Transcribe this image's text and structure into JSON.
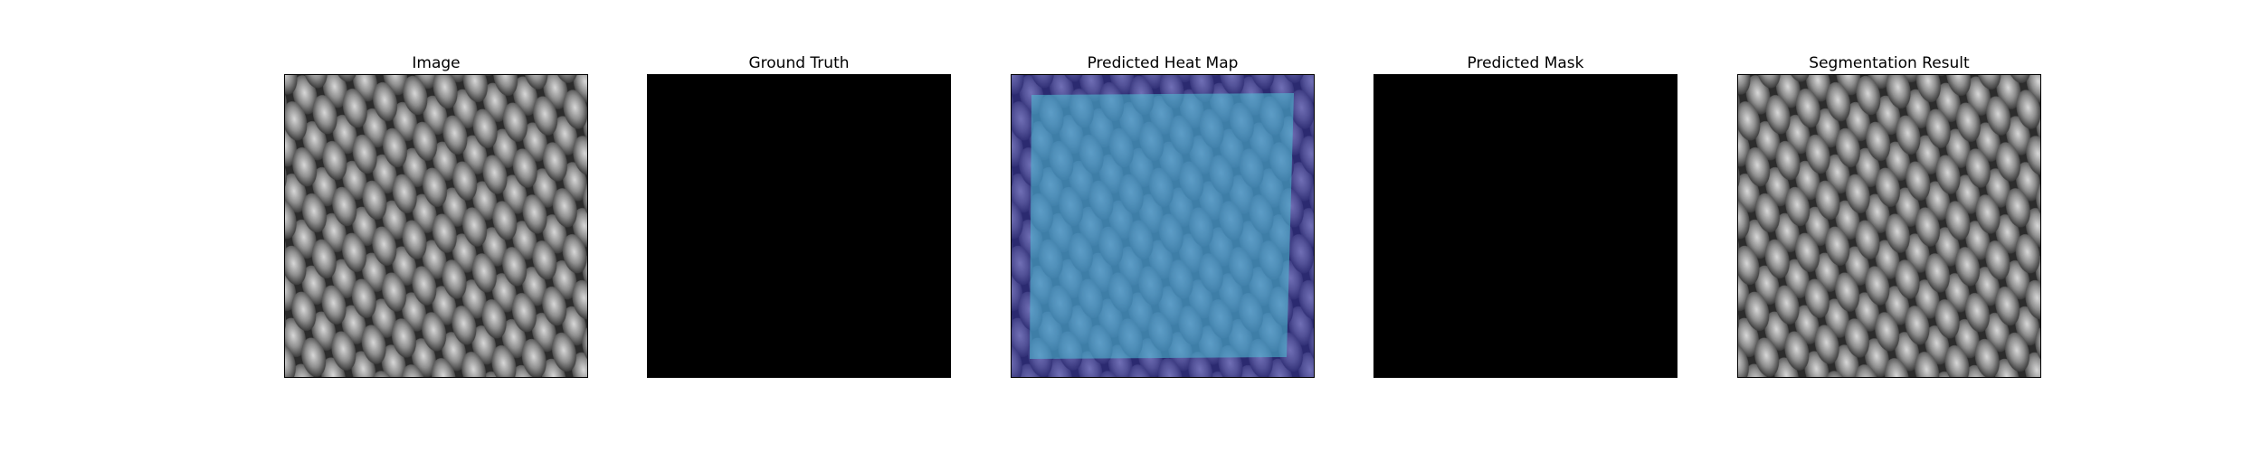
{
  "panels": [
    {
      "title": "Image"
    },
    {
      "title": "Ground Truth"
    },
    {
      "title": "Predicted Heat Map"
    },
    {
      "title": "Predicted Mask"
    },
    {
      "title": "Segmentation Result"
    }
  ],
  "colors": {
    "background": "#ffffff",
    "mask": "#000000",
    "texture_light": "#c8c8c8",
    "texture_dark": "#2a2a2a",
    "heat_low": "#2c2a9e",
    "heat_high": "#4fc3d6"
  }
}
